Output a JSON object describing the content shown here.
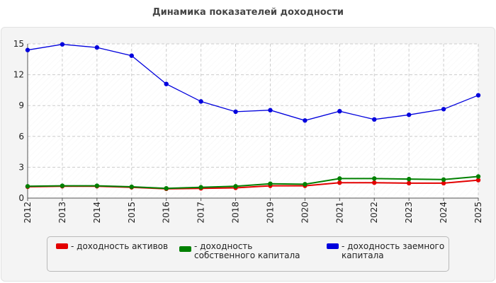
{
  "chart_data": {
    "type": "line",
    "title": "Динамика показателей доходности",
    "x": [
      "2012",
      "2013",
      "2014",
      "2015",
      "2016",
      "2017",
      "2018",
      "2019",
      "2020",
      "2021",
      "2022",
      "2023",
      "2024",
      "2025"
    ],
    "ylim": [
      0,
      15
    ],
    "yticks": [
      "0",
      "3",
      "6",
      "9",
      "12",
      "15"
    ],
    "grid": true,
    "legend_position": "bottom",
    "series": [
      {
        "name": "- доходность активов",
        "color": "#e30000",
        "values": [
          1.1,
          1.15,
          1.15,
          1.05,
          0.9,
          0.95,
          1.0,
          1.2,
          1.2,
          1.5,
          1.5,
          1.45,
          1.45,
          1.75
        ]
      },
      {
        "name": "- доходность собственного капитала",
        "color": "#008000",
        "values": [
          1.15,
          1.2,
          1.2,
          1.1,
          0.95,
          1.05,
          1.15,
          1.4,
          1.35,
          1.9,
          1.9,
          1.85,
          1.8,
          2.1
        ]
      },
      {
        "name": "- доходность заемного капитала",
        "color": "#0000dd",
        "values": [
          14.4,
          14.95,
          14.65,
          13.85,
          11.1,
          9.4,
          8.4,
          8.55,
          7.55,
          8.45,
          7.65,
          8.1,
          8.65,
          10.0
        ]
      }
    ]
  }
}
